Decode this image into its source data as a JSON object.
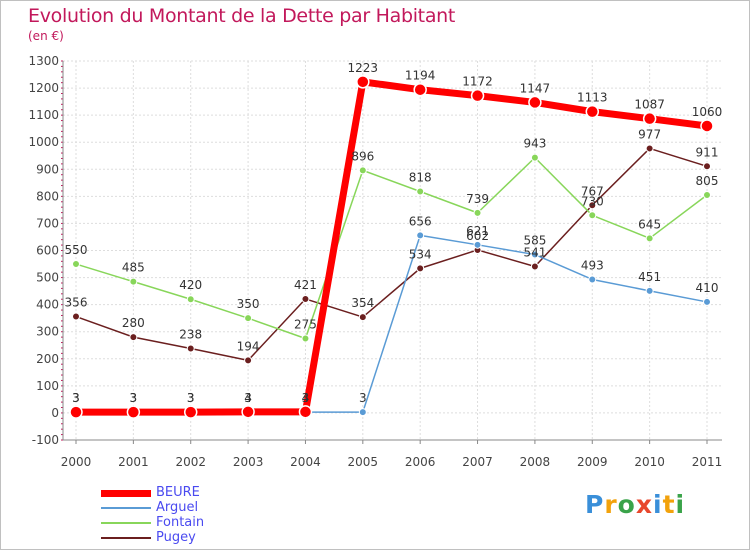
{
  "title": "Evolution du Montant de la Dette par Habitant",
  "subtitle": "(en €)",
  "logo": {
    "text": "Proxiti",
    "colors": [
      "#3a8fd9",
      "#f2a20c",
      "#3aa34a",
      "#e8472c",
      "#3a8fd9",
      "#f2a20c",
      "#3aa34a"
    ]
  },
  "chart_data": {
    "type": "line",
    "title": "Evolution du Montant de la Dette par Habitant",
    "ylabel": "(en €)",
    "xlabel": "",
    "ylim": [
      -100,
      1300
    ],
    "y_ticks": [
      "-100",
      "0",
      "100",
      "200",
      "300",
      "400",
      "500",
      "600",
      "700",
      "800",
      "900",
      "1000",
      "1100",
      "1200",
      "1300"
    ],
    "x": [
      "2000",
      "2001",
      "2002",
      "2003",
      "2004",
      "2005",
      "2006",
      "2007",
      "2008",
      "2009",
      "2010",
      "2011"
    ],
    "grid": true,
    "legend_position": "bottom-left",
    "series": [
      {
        "name": "Pugey",
        "color": "#6b1f1f",
        "width": 1.5,
        "marker_r": 3.5,
        "values": [
          356,
          280,
          238,
          194,
          421,
          354,
          534,
          602,
          541,
          767,
          977,
          911
        ],
        "labels": [
          "356",
          "280",
          "238",
          "194",
          "421",
          "354",
          "534",
          "602",
          "541",
          "767",
          "977",
          "911"
        ]
      },
      {
        "name": "Fontain",
        "color": "#88d65a",
        "width": 1.5,
        "marker_r": 3.5,
        "values": [
          550,
          485,
          420,
          350,
          275,
          896,
          818,
          739,
          943,
          730,
          645,
          805
        ],
        "labels": [
          "550",
          "485",
          "420",
          "350",
          "275",
          "896",
          "818",
          "739",
          "943",
          "730",
          "645",
          "805"
        ]
      },
      {
        "name": "Arguel",
        "color": "#5a9bd5",
        "width": 1.5,
        "marker_r": 3.5,
        "values": [
          3,
          3,
          3,
          3,
          3,
          3,
          656,
          621,
          585,
          493,
          451,
          410
        ],
        "labels": [
          "3",
          "3",
          "3",
          "3",
          "3",
          "3",
          "656",
          "621",
          "585",
          "493",
          "451",
          "410"
        ]
      },
      {
        "name": "BEURE",
        "color": "#ff0000",
        "width": 7,
        "marker_r": 6,
        "values": [
          3,
          3,
          3,
          4,
          4,
          1223,
          1194,
          1172,
          1147,
          1113,
          1087,
          1060
        ],
        "labels": [
          "3",
          "3",
          "3",
          "4",
          "4",
          "1223",
          "1194",
          "1172",
          "1147",
          "1113",
          "1087",
          "1060"
        ]
      }
    ]
  },
  "legend": [
    {
      "name": "BEURE",
      "color": "#ff0000",
      "width": 7
    },
    {
      "name": "Arguel",
      "color": "#5a9bd5",
      "width": 2
    },
    {
      "name": "Fontain",
      "color": "#88d65a",
      "width": 2
    },
    {
      "name": "Pugey",
      "color": "#6b1f1f",
      "width": 2
    }
  ]
}
